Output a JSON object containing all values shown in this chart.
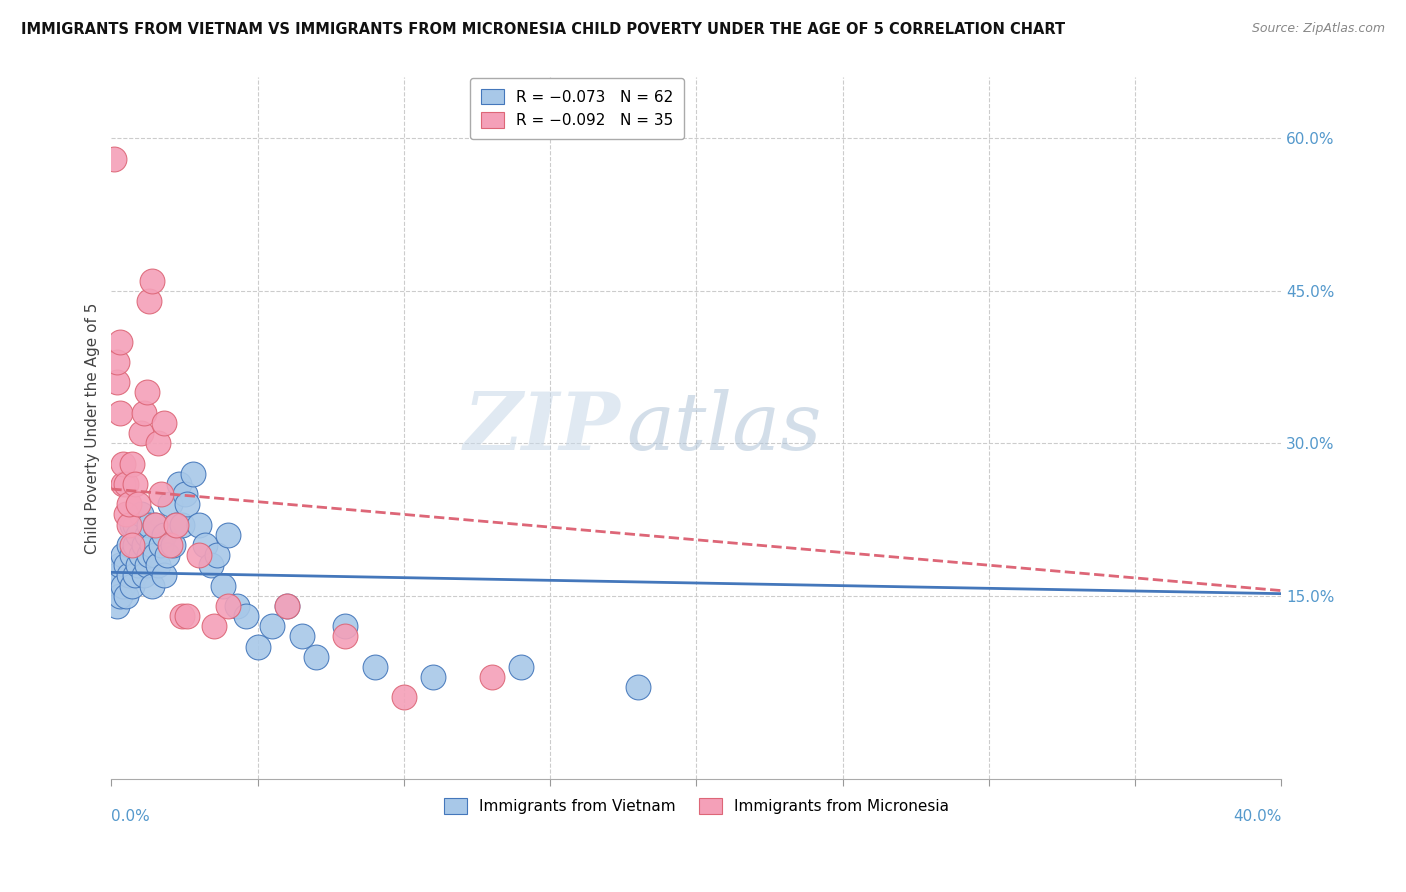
{
  "title": "IMMIGRANTS FROM VIETNAM VS IMMIGRANTS FROM MICRONESIA CHILD POVERTY UNDER THE AGE OF 5 CORRELATION CHART",
  "source": "Source: ZipAtlas.com",
  "ylabel": "Child Poverty Under the Age of 5",
  "ylabel_right_ticks": [
    "60.0%",
    "45.0%",
    "30.0%",
    "15.0%"
  ],
  "ylabel_right_vals": [
    0.6,
    0.45,
    0.3,
    0.15
  ],
  "xmin": 0.0,
  "xmax": 0.4,
  "ymin": -0.03,
  "ymax": 0.66,
  "color_blue": "#a8c8e8",
  "color_pink": "#f4a0b8",
  "color_blue_line": "#4477bb",
  "color_pink_line": "#dd6677",
  "watermark_zip": "ZIP",
  "watermark_atlas": "atlas",
  "vietnam_x": [
    0.001,
    0.002,
    0.002,
    0.003,
    0.003,
    0.004,
    0.004,
    0.005,
    0.005,
    0.006,
    0.006,
    0.007,
    0.007,
    0.007,
    0.008,
    0.008,
    0.008,
    0.009,
    0.009,
    0.01,
    0.01,
    0.011,
    0.011,
    0.012,
    0.012,
    0.013,
    0.013,
    0.014,
    0.014,
    0.015,
    0.015,
    0.016,
    0.017,
    0.018,
    0.018,
    0.019,
    0.02,
    0.021,
    0.022,
    0.023,
    0.024,
    0.025,
    0.026,
    0.028,
    0.03,
    0.032,
    0.034,
    0.036,
    0.038,
    0.04,
    0.043,
    0.046,
    0.05,
    0.055,
    0.06,
    0.065,
    0.07,
    0.08,
    0.09,
    0.11,
    0.14,
    0.18
  ],
  "vietnam_y": [
    0.16,
    0.14,
    0.17,
    0.15,
    0.18,
    0.16,
    0.19,
    0.15,
    0.18,
    0.17,
    0.2,
    0.16,
    0.19,
    0.22,
    0.17,
    0.2,
    0.22,
    0.18,
    0.21,
    0.19,
    0.23,
    0.17,
    0.2,
    0.18,
    0.21,
    0.19,
    0.22,
    0.2,
    0.16,
    0.19,
    0.22,
    0.18,
    0.2,
    0.17,
    0.21,
    0.19,
    0.24,
    0.2,
    0.22,
    0.26,
    0.22,
    0.25,
    0.24,
    0.27,
    0.22,
    0.2,
    0.18,
    0.19,
    0.16,
    0.21,
    0.14,
    0.13,
    0.1,
    0.12,
    0.14,
    0.11,
    0.09,
    0.12,
    0.08,
    0.07,
    0.08,
    0.06
  ],
  "micronesia_x": [
    0.001,
    0.002,
    0.002,
    0.003,
    0.003,
    0.004,
    0.004,
    0.005,
    0.005,
    0.006,
    0.006,
    0.007,
    0.007,
    0.008,
    0.009,
    0.01,
    0.011,
    0.012,
    0.013,
    0.014,
    0.015,
    0.016,
    0.017,
    0.018,
    0.02,
    0.022,
    0.024,
    0.026,
    0.03,
    0.035,
    0.04,
    0.06,
    0.08,
    0.1,
    0.13
  ],
  "micronesia_y": [
    0.58,
    0.36,
    0.38,
    0.33,
    0.4,
    0.26,
    0.28,
    0.23,
    0.26,
    0.22,
    0.24,
    0.2,
    0.28,
    0.26,
    0.24,
    0.31,
    0.33,
    0.35,
    0.44,
    0.46,
    0.22,
    0.3,
    0.25,
    0.32,
    0.2,
    0.22,
    0.13,
    0.13,
    0.19,
    0.12,
    0.14,
    0.14,
    0.11,
    0.05,
    0.07
  ],
  "blue_line_y0": 0.173,
  "blue_line_y1": 0.152,
  "pink_line_y0": 0.255,
  "pink_line_y1": 0.155
}
